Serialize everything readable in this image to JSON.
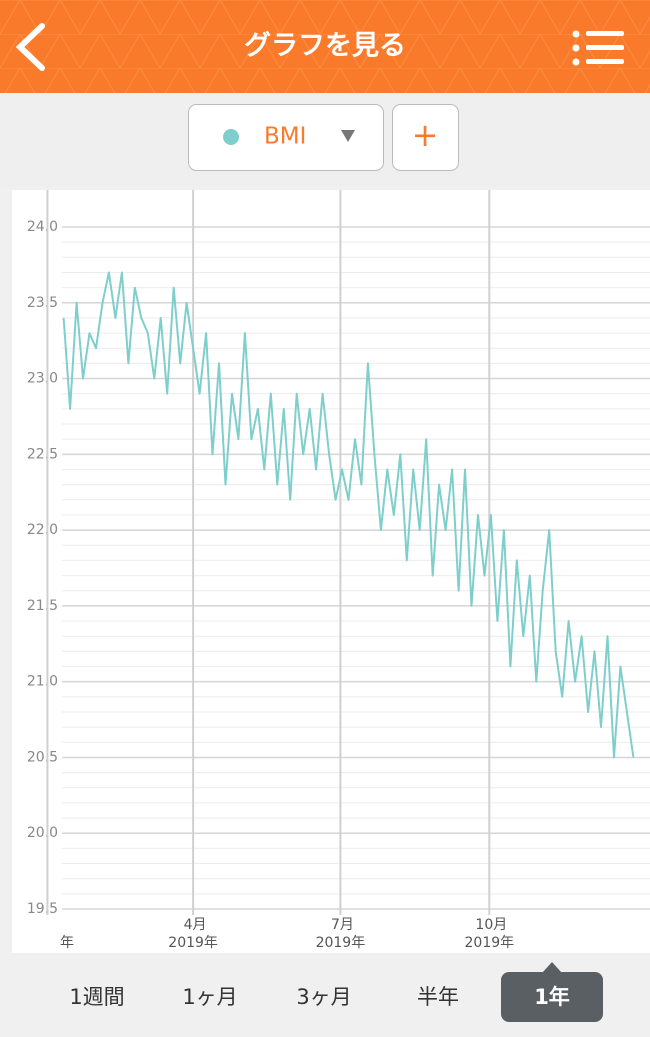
{
  "header": {
    "title": "グラフを見る"
  },
  "selector": {
    "metric": "BMI",
    "add": "+"
  },
  "chart_data": {
    "type": "line",
    "color": "#7ecfcb",
    "x": [
      10,
      14,
      18,
      22,
      26,
      30,
      34,
      38,
      42,
      46,
      50,
      54,
      58,
      62,
      66,
      70,
      74,
      78,
      82,
      86,
      90,
      94,
      98,
      102,
      106,
      110,
      114,
      118,
      122,
      126,
      130,
      134,
      138,
      142,
      146,
      150,
      154,
      158,
      162,
      166,
      170,
      174,
      178,
      182,
      186,
      190,
      194,
      198,
      202,
      206,
      210,
      214,
      218,
      222,
      226,
      230,
      234,
      238,
      242,
      246,
      250,
      254,
      258,
      262,
      266,
      270,
      274,
      278,
      282,
      286,
      290,
      294,
      298,
      302,
      306,
      310,
      314,
      318,
      322,
      326,
      330,
      334,
      338,
      342,
      346,
      350,
      354,
      358,
      362
    ],
    "values": [
      23.4,
      22.8,
      23.5,
      23.0,
      23.3,
      23.2,
      23.5,
      23.7,
      23.4,
      23.7,
      23.1,
      23.6,
      23.4,
      23.3,
      23.0,
      23.4,
      22.9,
      23.6,
      23.1,
      23.5,
      23.2,
      22.9,
      23.3,
      22.5,
      23.1,
      22.3,
      22.9,
      22.6,
      23.3,
      22.6,
      22.8,
      22.4,
      22.9,
      22.3,
      22.8,
      22.2,
      22.9,
      22.5,
      22.8,
      22.4,
      22.9,
      22.5,
      22.2,
      22.4,
      22.2,
      22.6,
      22.3,
      23.1,
      22.5,
      22.0,
      22.4,
      22.1,
      22.5,
      21.8,
      22.4,
      22.0,
      22.6,
      21.7,
      22.3,
      22.0,
      22.4,
      21.6,
      22.4,
      21.5,
      22.1,
      21.7,
      22.1,
      21.4,
      22.0,
      21.1,
      21.8,
      21.3,
      21.7,
      21.0,
      21.6,
      22.0,
      21.2,
      20.9,
      21.4,
      21.0,
      21.3,
      20.8,
      21.2,
      20.7,
      21.3,
      20.5,
      21.1,
      20.8,
      20.5
    ],
    "xlim": [
      9,
      363
    ],
    "xticks": [
      {
        "value": 0,
        "sublabel": "年"
      },
      {
        "value": 90,
        "label": "4月",
        "sublabel": "2019年"
      },
      {
        "value": 181,
        "label": "7月",
        "sublabel": "2019年"
      },
      {
        "value": 273,
        "label": "10月",
        "sublabel": "2019年"
      }
    ],
    "ylim": [
      19.5,
      24.0
    ],
    "yticks": [
      {
        "value": 19.5,
        "label": "19.5"
      },
      {
        "value": 20,
        "label": "20.0"
      },
      {
        "value": 20.5,
        "label": "20.5"
      },
      {
        "value": 21,
        "label": "21.0"
      },
      {
        "value": 21.5,
        "label": "21.5"
      },
      {
        "value": 22,
        "label": "22.0"
      },
      {
        "value": 22.5,
        "label": "22.5"
      },
      {
        "value": 23,
        "label": "23.0"
      },
      {
        "value": 23.5,
        "label": "23.5"
      },
      {
        "value": 24,
        "label": "24.0"
      }
    ],
    "minor_grid_step": 0.1,
    "grid": true
  },
  "tabs": [
    "1週間",
    "1ヶ月",
    "3ヶ月",
    "半年",
    "1年"
  ],
  "selected_tab": 4
}
